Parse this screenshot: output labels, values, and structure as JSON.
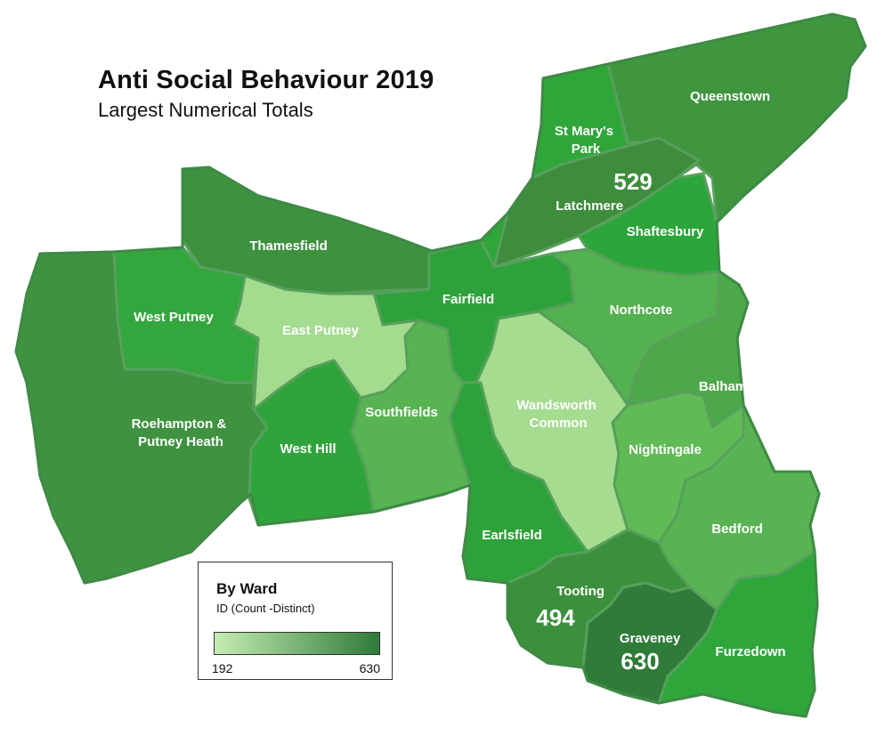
{
  "title": "Anti Social Behaviour 2019",
  "subtitle": "Largest Numerical Totals",
  "legend": {
    "title": "By Ward",
    "subtitle": "ID (Count -Distinct)",
    "min": "192",
    "max": "630",
    "min_value": 192,
    "max_value": 630,
    "color_low": "#c5ecb3",
    "color_high": "#2f7b39"
  },
  "wards": [
    {
      "id": "queenstown",
      "label": "Queenstown",
      "color": "#3f963f"
    },
    {
      "id": "st-marys-park",
      "label": "St Mary's Park",
      "label_lines": [
        "St Mary's",
        "Park"
      ],
      "color": "#2fa63a"
    },
    {
      "id": "latchmere",
      "label": "Latchmere",
      "value": "529",
      "color": "#3e8d3c"
    },
    {
      "id": "shaftesbury",
      "label": "Shaftesbury",
      "color": "#2ca53a"
    },
    {
      "id": "thamesfield",
      "label": "Thamesfield",
      "color": "#3e923f"
    },
    {
      "id": "fairfield",
      "label": "Fairfield",
      "color": "#2ea23a"
    },
    {
      "id": "west-putney",
      "label": "West Putney",
      "color": "#33a63e"
    },
    {
      "id": "east-putney",
      "label": "East Putney",
      "color": "#a4dc8f"
    },
    {
      "id": "northcote",
      "label": "Northcote",
      "color": "#54b14f"
    },
    {
      "id": "roehampton",
      "label": "Roehampton & Putney Heath",
      "label_lines": [
        "Roehampton &",
        "Putney Heath"
      ],
      "color": "#3f923f"
    },
    {
      "id": "wandsworth-common",
      "label": "Wandsworth Common",
      "label_lines": [
        "Wandsworth",
        "Common"
      ],
      "color": "#a5dc90"
    },
    {
      "id": "balham",
      "label": "Balham",
      "color": "#4da84a"
    },
    {
      "id": "southfields",
      "label": "Southfields",
      "color": "#58b452"
    },
    {
      "id": "west-hill",
      "label": "West Hill",
      "color": "#2fa43a"
    },
    {
      "id": "nightingale",
      "label": "Nightingale",
      "color": "#60ba55"
    },
    {
      "id": "earlsfield",
      "label": "Earlsfield",
      "color": "#2ea13a"
    },
    {
      "id": "bedford",
      "label": "Bedford",
      "color": "#58b452"
    },
    {
      "id": "tooting",
      "label": "Tooting",
      "value": "494",
      "color": "#3c903c"
    },
    {
      "id": "graveney",
      "label": "Graveney",
      "value": "630",
      "color": "#2f7b39"
    },
    {
      "id": "furzedown",
      "label": "Furzedown",
      "color": "#2ea63a"
    }
  ]
}
